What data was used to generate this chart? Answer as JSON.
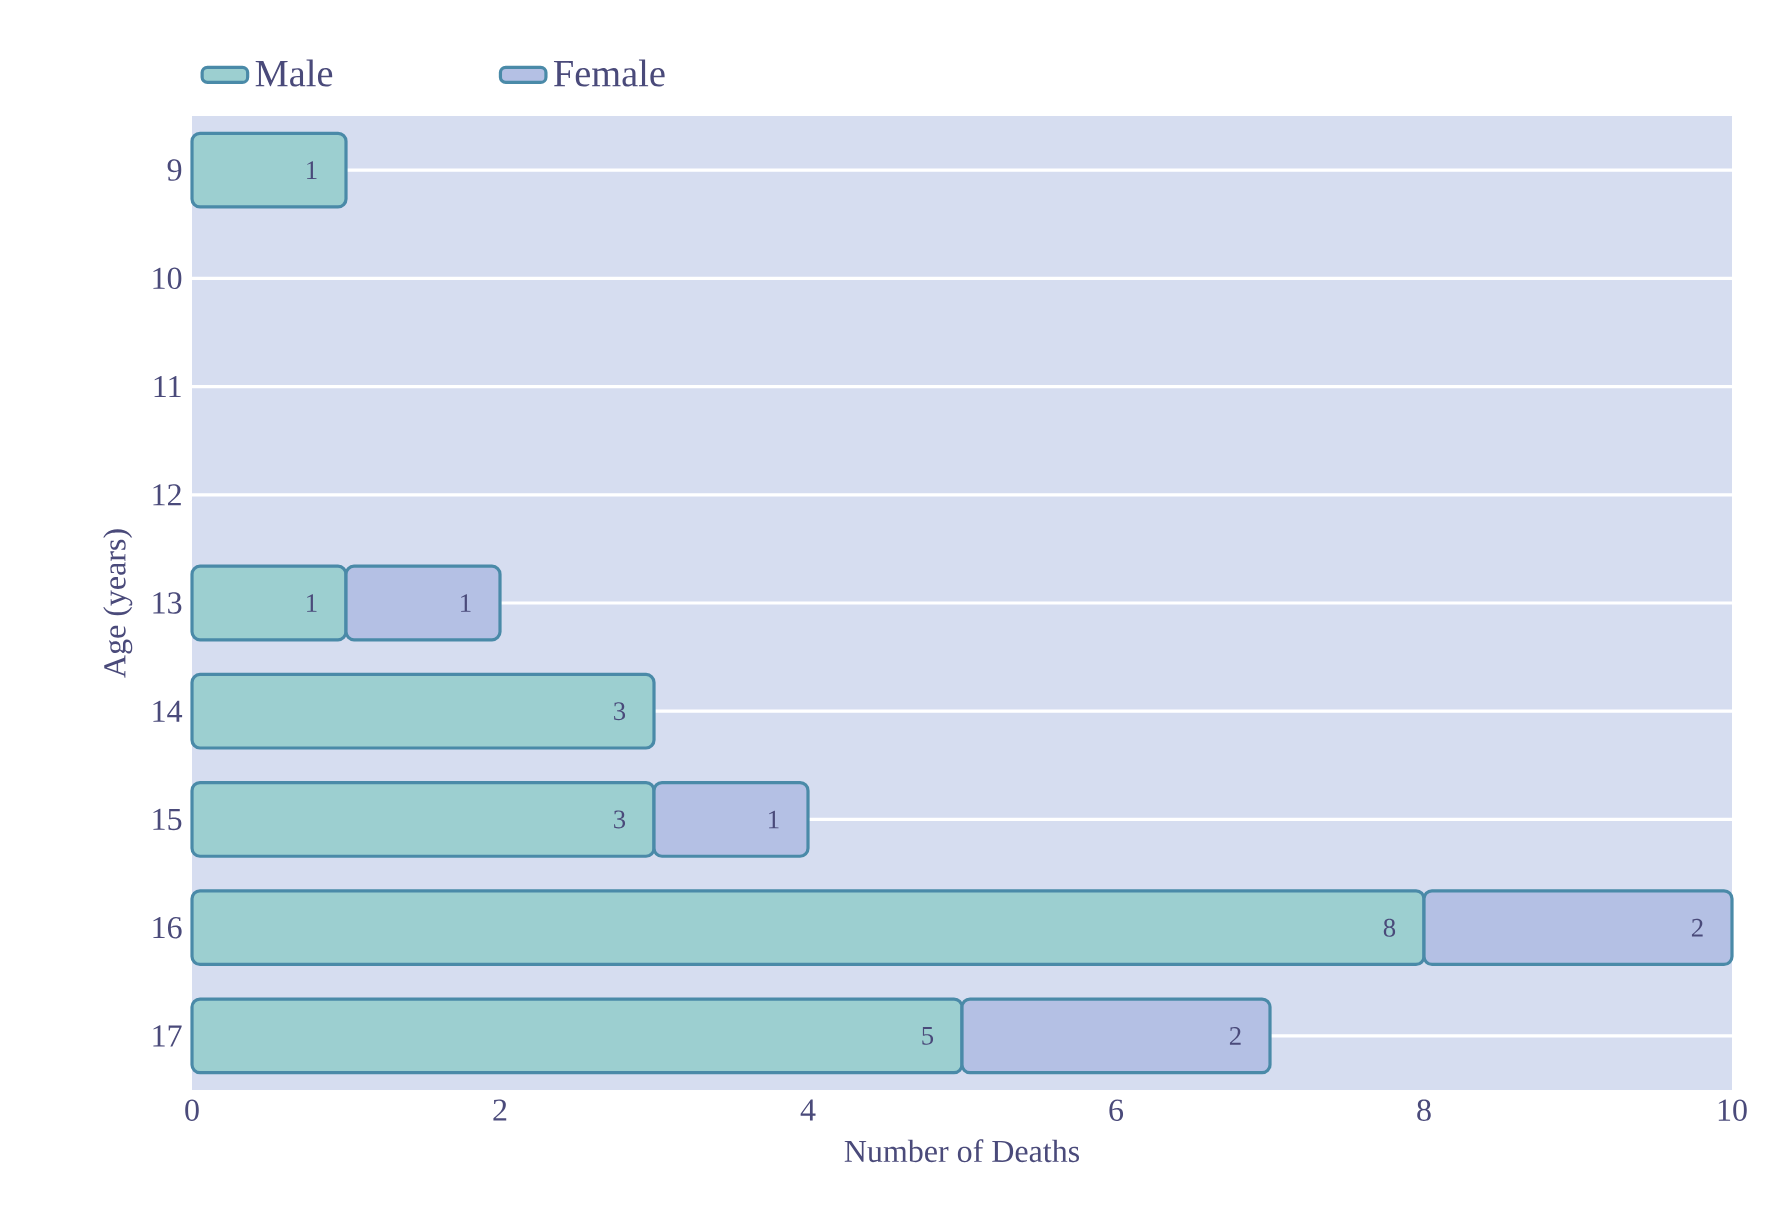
{
  "chart_data": {
    "type": "bar",
    "orientation": "horizontal",
    "stacked": true,
    "xlabel": "Number of Deaths",
    "ylabel": "Age (years)",
    "categories": [
      "9",
      "10",
      "11",
      "12",
      "13",
      "14",
      "15",
      "16",
      "17"
    ],
    "series": [
      {
        "name": "Male",
        "color": "#9ccfd0",
        "values": [
          1,
          null,
          null,
          null,
          1,
          3,
          3,
          8,
          5
        ]
      },
      {
        "name": "Female",
        "color": "#b4c0e4",
        "values": [
          null,
          null,
          null,
          null,
          1,
          null,
          1,
          2,
          2
        ]
      }
    ],
    "xlim": [
      0,
      10
    ],
    "xticks": [
      0,
      2,
      4,
      6,
      8,
      10
    ],
    "grid": "y",
    "legend": "top left",
    "data_labels": true
  }
}
